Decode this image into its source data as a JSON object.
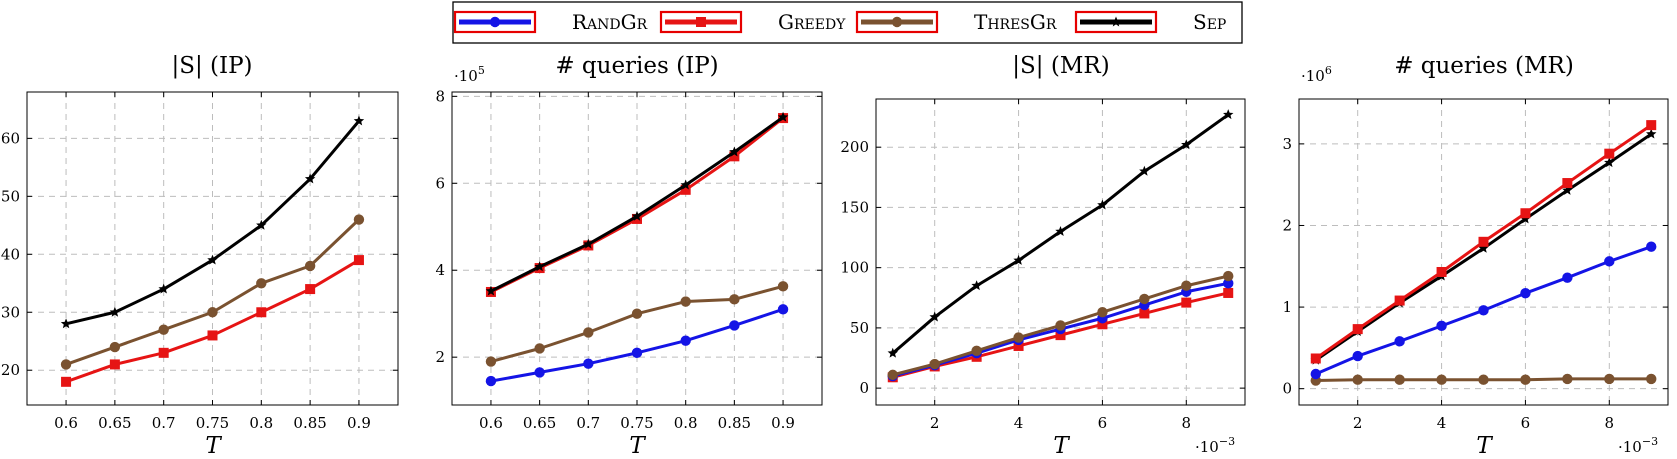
{
  "legend": {
    "entries": [
      {
        "label": "RandGr",
        "color": "#1414e6",
        "marker": "circle"
      },
      {
        "label": "Greedy",
        "color": "#e61414",
        "marker": "square"
      },
      {
        "label": "ThresGr",
        "color": "#7a5230",
        "marker": "circle"
      },
      {
        "label": "Sep",
        "color": "#000000",
        "marker": "star"
      }
    ]
  },
  "chart_data": [
    {
      "type": "line",
      "title": "|S| (IP)",
      "xlabel": "T",
      "ylabel": "",
      "x": [
        0.6,
        0.65,
        0.7,
        0.75,
        0.8,
        0.85,
        0.9
      ],
      "xticks": [
        "0.6",
        "0.65",
        "0.7",
        "0.75",
        "0.8",
        "0.85",
        "0.9"
      ],
      "xlim": [
        0.56,
        0.94
      ],
      "ylim": [
        14,
        68
      ],
      "yticks": [
        20,
        30,
        40,
        50,
        60
      ],
      "ytick_labels": [
        "20",
        "30",
        "40",
        "50",
        "60"
      ],
      "x_multiplier": "",
      "y_multiplier": "",
      "grid": true,
      "series": [
        {
          "name": "Sep",
          "values": [
            28,
            30,
            34,
            39,
            45,
            53,
            63
          ]
        },
        {
          "name": "ThresGr",
          "values": [
            21,
            24,
            27,
            30,
            35,
            38,
            46
          ]
        },
        {
          "name": "Greedy",
          "values": [
            18,
            21,
            23,
            26,
            30,
            34,
            39
          ]
        }
      ]
    },
    {
      "type": "line",
      "title": "# queries (IP)",
      "xlabel": "T",
      "ylabel": "",
      "x": [
        0.6,
        0.65,
        0.7,
        0.75,
        0.8,
        0.85,
        0.9
      ],
      "xticks": [
        "0.6",
        "0.65",
        "0.7",
        "0.75",
        "0.8",
        "0.85",
        "0.9"
      ],
      "xlim": [
        0.56,
        0.94
      ],
      "ylim": [
        0.9,
        8.1
      ],
      "yticks": [
        2,
        4,
        6,
        8
      ],
      "ytick_labels": [
        "2",
        "4",
        "6",
        "8"
      ],
      "x_multiplier": "",
      "y_multiplier": "·10",
      "y_multiplier_exp": "5",
      "grid": true,
      "series": [
        {
          "name": "Sep",
          "values": [
            3.52,
            4.08,
            4.6,
            5.24,
            5.96,
            6.72,
            7.52
          ]
        },
        {
          "name": "Greedy",
          "values": [
            3.5,
            4.05,
            4.57,
            5.18,
            5.85,
            6.62,
            7.5
          ]
        },
        {
          "name": "ThresGr",
          "values": [
            1.9,
            2.2,
            2.57,
            3.0,
            3.28,
            3.33,
            3.63
          ]
        },
        {
          "name": "RandGr",
          "values": [
            1.45,
            1.65,
            1.85,
            2.1,
            2.38,
            2.73,
            3.1
          ]
        }
      ]
    },
    {
      "type": "line",
      "title": "|S| (MR)",
      "xlabel": "T",
      "ylabel": "",
      "x": [
        1,
        2,
        3,
        4,
        5,
        6,
        7,
        8,
        9
      ],
      "xticks": [
        "2",
        "4",
        "6",
        "8"
      ],
      "xtick_values": [
        2,
        4,
        6,
        8
      ],
      "xlim": [
        0.6,
        9.4
      ],
      "ylim": [
        -14,
        240
      ],
      "yticks": [
        0,
        50,
        100,
        150,
        200
      ],
      "ytick_labels": [
        "0",
        "50",
        "100",
        "150",
        "200"
      ],
      "x_multiplier": "·10",
      "x_multiplier_exp": "−3",
      "y_multiplier": "",
      "grid": true,
      "series": [
        {
          "name": "Sep",
          "values": [
            29,
            59,
            85,
            106,
            130,
            152,
            180,
            202,
            227
          ]
        },
        {
          "name": "ThresGr",
          "values": [
            11,
            20,
            31,
            42,
            52,
            63,
            74,
            85,
            93
          ]
        },
        {
          "name": "RandGr",
          "values": [
            10,
            19,
            29,
            40,
            49,
            58,
            69,
            80,
            87
          ]
        },
        {
          "name": "Greedy",
          "values": [
            9,
            18,
            26,
            35,
            44,
            53,
            62,
            71,
            79
          ]
        }
      ]
    },
    {
      "type": "line",
      "title": "# queries (MR)",
      "xlabel": "T",
      "ylabel": "",
      "x": [
        1,
        2,
        3,
        4,
        5,
        6,
        7,
        8,
        9
      ],
      "xticks": [
        "2",
        "4",
        "6",
        "8"
      ],
      "xtick_values": [
        2,
        4,
        6,
        8
      ],
      "xlim": [
        0.6,
        9.4
      ],
      "ylim": [
        -0.2,
        3.55
      ],
      "yticks": [
        0,
        1,
        2,
        3
      ],
      "ytick_labels": [
        "0",
        "1",
        "2",
        "3"
      ],
      "x_multiplier": "·10",
      "x_multiplier_exp": "−3",
      "y_multiplier": "·10",
      "y_multiplier_exp": "6",
      "grid": true,
      "series": [
        {
          "name": "Greedy",
          "values": [
            0.37,
            0.73,
            1.08,
            1.43,
            1.8,
            2.15,
            2.52,
            2.88,
            3.23
          ]
        },
        {
          "name": "Sep",
          "values": [
            0.35,
            0.7,
            1.05,
            1.38,
            1.72,
            2.08,
            2.43,
            2.77,
            3.12
          ]
        },
        {
          "name": "RandGr",
          "values": [
            0.18,
            0.4,
            0.58,
            0.77,
            0.96,
            1.17,
            1.36,
            1.56,
            1.74
          ]
        },
        {
          "name": "ThresGr",
          "values": [
            0.1,
            0.11,
            0.11,
            0.11,
            0.11,
            0.11,
            0.12,
            0.12,
            0.12
          ]
        }
      ]
    }
  ]
}
